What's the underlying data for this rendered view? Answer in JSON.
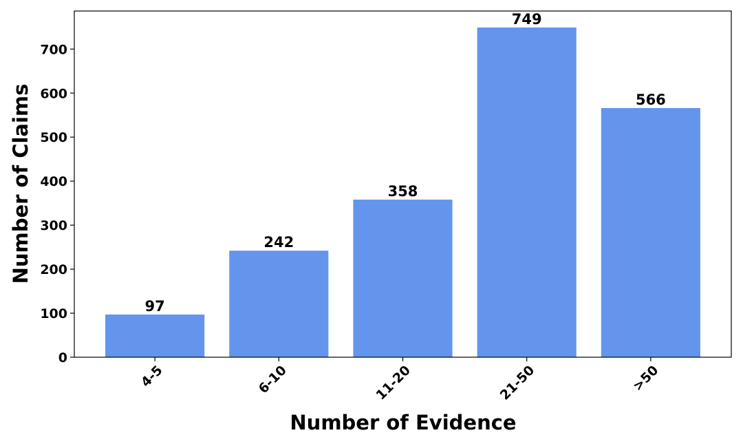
{
  "chart_data": {
    "type": "bar",
    "xlabel": "Number of Evidence",
    "ylabel": "Number of Claims",
    "categories": [
      "4-5",
      "6-10",
      "11-20",
      "21-50",
      ">50"
    ],
    "values": [
      97,
      242,
      358,
      749,
      566
    ],
    "color": "#6495ed",
    "ylim": [
      0,
      786.45
    ],
    "yticks": [
      0,
      100,
      200,
      300,
      400,
      500,
      600,
      700
    ],
    "grid": false
  }
}
